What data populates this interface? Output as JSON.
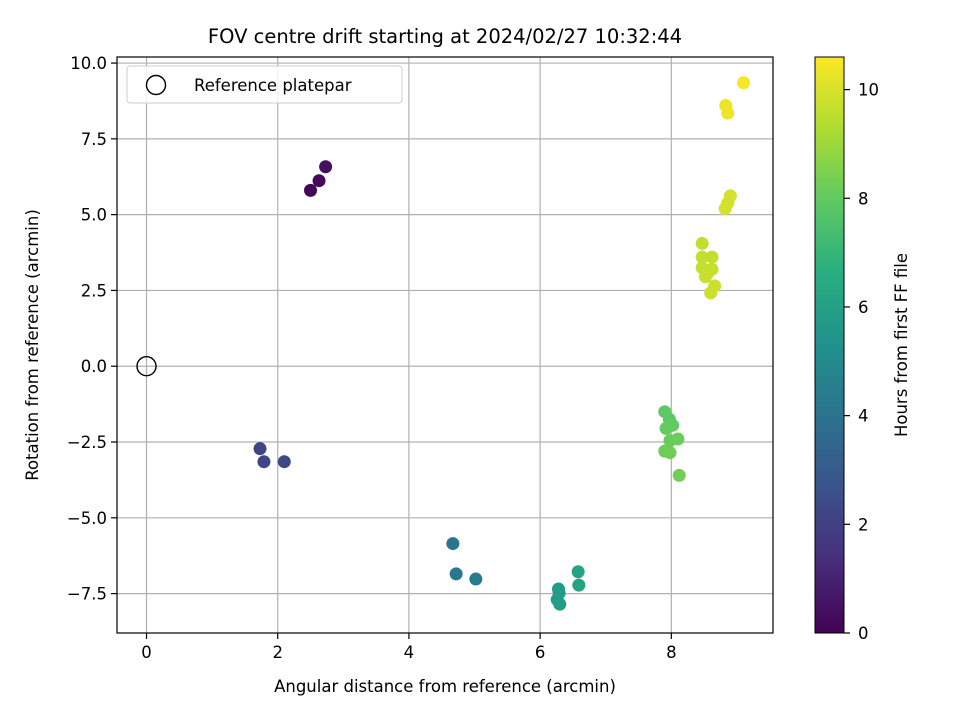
{
  "chart_data": {
    "type": "scatter",
    "title": "FOV centre drift starting at 2024/02/27 10:32:44",
    "xlabel": "Angular distance from reference (arcmin)",
    "ylabel": "Rotation from reference (arcmin)",
    "xlim": [
      -0.45,
      9.55
    ],
    "ylim": [
      -8.8,
      10.2
    ],
    "x_ticks": [
      0,
      2,
      4,
      6,
      8
    ],
    "y_ticks": [
      -7.5,
      -5.0,
      -2.5,
      0.0,
      2.5,
      5.0,
      7.5,
      10.0
    ],
    "x_tick_labels": [
      "0",
      "2",
      "4",
      "6",
      "8"
    ],
    "y_tick_labels": [
      "−7.5",
      "−5.0",
      "−2.5",
      "0.0",
      "2.5",
      "5.0",
      "7.5",
      "10.0"
    ],
    "grid": true,
    "legend": {
      "position": "top-left",
      "entries": [
        {
          "label": "Reference platepar",
          "marker": "open-circle",
          "color": "#000000"
        }
      ]
    },
    "reference_point": {
      "x": 0,
      "y": 0
    },
    "colorbar": {
      "label": "Hours from first FF file",
      "colormap": "viridis",
      "range": [
        0,
        10.6
      ],
      "ticks": [
        0,
        2,
        4,
        6,
        8,
        10
      ],
      "tick_labels": [
        "0",
        "2",
        "4",
        "6",
        "8",
        "10"
      ]
    },
    "series": [
      {
        "color_by": "hours",
        "points": [
          {
            "x": 2.5,
            "y": 5.8,
            "hours": 0.1
          },
          {
            "x": 2.63,
            "y": 6.12,
            "hours": 0.25
          },
          {
            "x": 2.73,
            "y": 6.58,
            "hours": 0.4
          },
          {
            "x": 1.73,
            "y": -2.72,
            "hours": 2.1
          },
          {
            "x": 1.79,
            "y": -3.15,
            "hours": 2.2
          },
          {
            "x": 2.1,
            "y": -3.15,
            "hours": 2.3
          },
          {
            "x": 4.67,
            "y": -5.85,
            "hours": 4.1
          },
          {
            "x": 4.72,
            "y": -6.85,
            "hours": 4.2
          },
          {
            "x": 5.02,
            "y": -7.02,
            "hours": 4.3
          },
          {
            "x": 6.28,
            "y": -7.35,
            "hours": 5.7
          },
          {
            "x": 6.29,
            "y": -7.48,
            "hours": 5.75
          },
          {
            "x": 6.26,
            "y": -7.7,
            "hours": 5.8
          },
          {
            "x": 6.3,
            "y": -7.85,
            "hours": 5.85
          },
          {
            "x": 6.58,
            "y": -6.78,
            "hours": 6.1
          },
          {
            "x": 6.59,
            "y": -7.22,
            "hours": 6.15
          },
          {
            "x": 7.9,
            "y": -1.5,
            "hours": 7.9
          },
          {
            "x": 7.97,
            "y": -1.75,
            "hours": 7.95
          },
          {
            "x": 8.02,
            "y": -1.95,
            "hours": 8.0
          },
          {
            "x": 7.92,
            "y": -2.05,
            "hours": 8.05
          },
          {
            "x": 7.98,
            "y": -2.45,
            "hours": 8.1
          },
          {
            "x": 8.1,
            "y": -2.4,
            "hours": 8.15
          },
          {
            "x": 7.9,
            "y": -2.8,
            "hours": 8.2
          },
          {
            "x": 7.98,
            "y": -2.85,
            "hours": 8.25
          },
          {
            "x": 8.12,
            "y": -3.6,
            "hours": 8.3
          },
          {
            "x": 8.47,
            "y": 4.05,
            "hours": 9.6
          },
          {
            "x": 8.47,
            "y": 3.6,
            "hours": 9.62
          },
          {
            "x": 8.62,
            "y": 3.6,
            "hours": 9.64
          },
          {
            "x": 8.47,
            "y": 3.25,
            "hours": 9.66
          },
          {
            "x": 8.62,
            "y": 3.2,
            "hours": 9.68
          },
          {
            "x": 8.55,
            "y": 3.05,
            "hours": 9.7
          },
          {
            "x": 8.52,
            "y": 2.95,
            "hours": 9.72
          },
          {
            "x": 8.66,
            "y": 2.65,
            "hours": 9.74
          },
          {
            "x": 8.6,
            "y": 2.42,
            "hours": 9.76
          },
          {
            "x": 8.9,
            "y": 5.62,
            "hours": 9.9
          },
          {
            "x": 8.86,
            "y": 5.38,
            "hours": 9.92
          },
          {
            "x": 8.82,
            "y": 5.2,
            "hours": 9.94
          },
          {
            "x": 8.83,
            "y": 8.6,
            "hours": 10.3
          },
          {
            "x": 8.86,
            "y": 8.35,
            "hours": 10.35
          },
          {
            "x": 9.1,
            "y": 9.35,
            "hours": 10.5
          }
        ]
      }
    ]
  }
}
